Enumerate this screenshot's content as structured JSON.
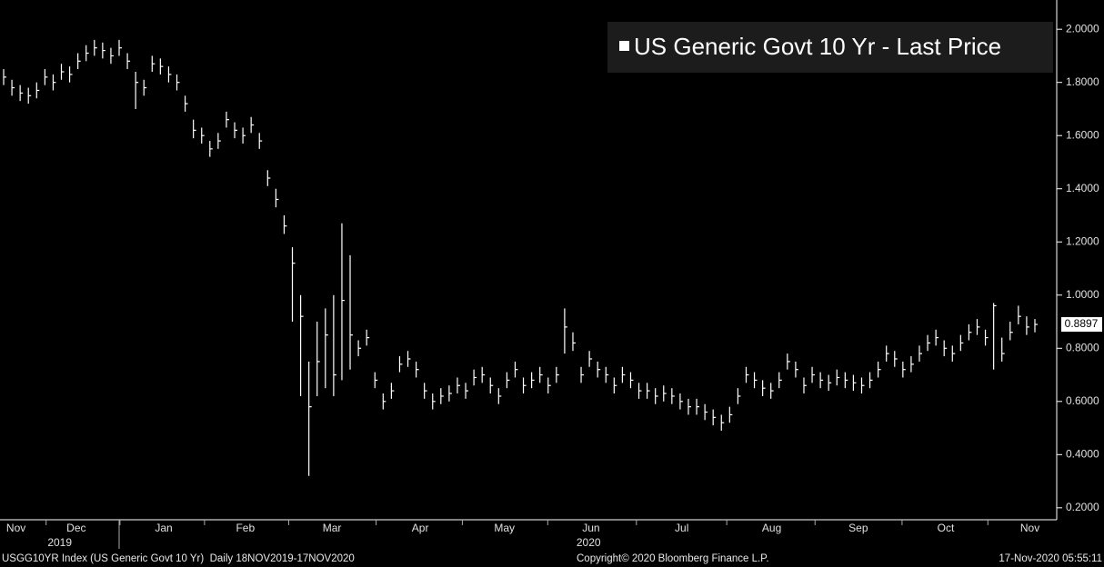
{
  "chart_data": {
    "type": "hlc",
    "series": [
      {
        "name": "US Generic Govt 10 Yr - Last Price",
        "color": "#ffffff",
        "high": [
          1.85,
          1.81,
          1.79,
          1.78,
          1.8,
          1.85,
          1.83,
          1.87,
          1.86,
          1.91,
          1.94,
          1.96,
          1.95,
          1.93,
          1.96,
          1.91,
          1.84,
          1.81,
          1.9,
          1.89,
          1.86,
          1.83,
          1.75,
          1.66,
          1.63,
          1.58,
          1.61,
          1.69,
          1.65,
          1.63,
          1.67,
          1.61,
          1.47,
          1.4,
          1.3,
          1.18,
          1.0,
          0.75,
          0.9,
          0.95,
          1.0,
          1.27,
          1.15,
          0.83,
          0.87,
          0.71,
          0.63,
          0.67,
          0.77,
          0.79,
          0.75,
          0.67,
          0.63,
          0.65,
          0.66,
          0.69,
          0.67,
          0.72,
          0.73,
          0.69,
          0.65,
          0.71,
          0.75,
          0.69,
          0.71,
          0.73,
          0.69,
          0.73,
          0.95,
          0.86,
          0.73,
          0.79,
          0.75,
          0.73,
          0.69,
          0.73,
          0.71,
          0.67,
          0.67,
          0.65,
          0.66,
          0.65,
          0.63,
          0.61,
          0.61,
          0.59,
          0.57,
          0.55,
          0.58,
          0.65,
          0.73,
          0.71,
          0.68,
          0.67,
          0.71,
          0.78,
          0.75,
          0.69,
          0.73,
          0.71,
          0.7,
          0.72,
          0.71,
          0.7,
          0.69,
          0.71,
          0.75,
          0.81,
          0.79,
          0.75,
          0.77,
          0.81,
          0.85,
          0.87,
          0.83,
          0.81,
          0.85,
          0.89,
          0.91,
          0.87,
          0.97,
          0.84,
          0.9,
          0.96,
          0.92,
          0.91
        ],
        "low": [
          1.79,
          1.75,
          1.73,
          1.72,
          1.74,
          1.79,
          1.77,
          1.81,
          1.8,
          1.85,
          1.88,
          1.9,
          1.89,
          1.87,
          1.9,
          1.85,
          1.7,
          1.75,
          1.84,
          1.83,
          1.8,
          1.77,
          1.69,
          1.59,
          1.57,
          1.52,
          1.55,
          1.63,
          1.59,
          1.57,
          1.61,
          1.55,
          1.41,
          1.33,
          1.23,
          0.9,
          0.62,
          0.32,
          0.62,
          0.65,
          0.62,
          0.68,
          0.72,
          0.77,
          0.81,
          0.65,
          0.57,
          0.61,
          0.71,
          0.73,
          0.69,
          0.61,
          0.57,
          0.59,
          0.6,
          0.63,
          0.61,
          0.66,
          0.67,
          0.63,
          0.59,
          0.65,
          0.69,
          0.63,
          0.65,
          0.67,
          0.63,
          0.67,
          0.78,
          0.79,
          0.67,
          0.73,
          0.69,
          0.67,
          0.63,
          0.67,
          0.65,
          0.61,
          0.61,
          0.59,
          0.6,
          0.59,
          0.57,
          0.55,
          0.55,
          0.53,
          0.51,
          0.49,
          0.52,
          0.59,
          0.67,
          0.65,
          0.62,
          0.61,
          0.65,
          0.72,
          0.69,
          0.63,
          0.67,
          0.65,
          0.64,
          0.66,
          0.65,
          0.64,
          0.63,
          0.65,
          0.69,
          0.75,
          0.73,
          0.69,
          0.71,
          0.75,
          0.79,
          0.81,
          0.77,
          0.75,
          0.79,
          0.83,
          0.85,
          0.81,
          0.72,
          0.75,
          0.83,
          0.89,
          0.85,
          0.86
        ],
        "close": [
          1.82,
          1.78,
          1.76,
          1.75,
          1.77,
          1.82,
          1.8,
          1.84,
          1.83,
          1.88,
          1.91,
          1.93,
          1.92,
          1.9,
          1.93,
          1.88,
          1.8,
          1.78,
          1.87,
          1.86,
          1.83,
          1.8,
          1.72,
          1.62,
          1.6,
          1.55,
          1.58,
          1.66,
          1.62,
          1.6,
          1.64,
          1.58,
          1.44,
          1.36,
          1.26,
          1.12,
          0.92,
          0.58,
          0.75,
          0.85,
          0.7,
          0.98,
          0.85,
          0.8,
          0.84,
          0.68,
          0.6,
          0.64,
          0.74,
          0.76,
          0.72,
          0.64,
          0.6,
          0.62,
          0.63,
          0.66,
          0.64,
          0.69,
          0.7,
          0.66,
          0.62,
          0.68,
          0.72,
          0.66,
          0.68,
          0.7,
          0.66,
          0.7,
          0.88,
          0.82,
          0.7,
          0.76,
          0.72,
          0.7,
          0.66,
          0.7,
          0.68,
          0.64,
          0.64,
          0.62,
          0.63,
          0.62,
          0.6,
          0.58,
          0.58,
          0.56,
          0.54,
          0.52,
          0.55,
          0.62,
          0.7,
          0.68,
          0.65,
          0.64,
          0.68,
          0.75,
          0.72,
          0.66,
          0.7,
          0.68,
          0.67,
          0.69,
          0.68,
          0.67,
          0.66,
          0.68,
          0.72,
          0.78,
          0.76,
          0.72,
          0.74,
          0.78,
          0.82,
          0.84,
          0.8,
          0.78,
          0.82,
          0.86,
          0.88,
          0.84,
          0.96,
          0.78,
          0.86,
          0.92,
          0.88,
          0.8897
        ]
      }
    ],
    "xlim": [
      0,
      125
    ],
    "xticks": [
      {
        "value": 1.5,
        "label": "Nov"
      },
      {
        "value": 8.8,
        "label": "Dec"
      },
      {
        "value": 19.4,
        "label": "Jan"
      },
      {
        "value": 29.3,
        "label": "Feb"
      },
      {
        "value": 39.8,
        "label": "Mar"
      },
      {
        "value": 50.5,
        "label": "Apr"
      },
      {
        "value": 60.7,
        "label": "May"
      },
      {
        "value": 71.2,
        "label": "Jun"
      },
      {
        "value": 82.2,
        "label": "Jul"
      },
      {
        "value": 93.1,
        "label": "Aug"
      },
      {
        "value": 103.6,
        "label": "Sep"
      },
      {
        "value": 114.2,
        "label": "Oct"
      },
      {
        "value": 124.4,
        "label": "Nov"
      }
    ],
    "year_ticks": [
      {
        "value": 6.8,
        "label": "2019"
      },
      {
        "value": 70.9,
        "label": "2020"
      }
    ],
    "ylim": [
      0.155,
      2.11
    ],
    "yticks": [
      {
        "value": 0.2,
        "label": "0.2000"
      },
      {
        "value": 0.4,
        "label": "0.4000"
      },
      {
        "value": 0.6,
        "label": "0.6000"
      },
      {
        "value": 0.8,
        "label": "0.8000"
      },
      {
        "value": 1.0,
        "label": "1.0000"
      },
      {
        "value": 1.2,
        "label": "1.2000"
      },
      {
        "value": 1.4,
        "label": "1.4000"
      },
      {
        "value": 1.6,
        "label": "1.6000"
      },
      {
        "value": 1.8,
        "label": "1.8000"
      },
      {
        "value": 2.0,
        "label": "2.0000"
      }
    ],
    "legend": "top-right"
  },
  "footer": {
    "left": "USGG10YR Index (US Generic Govt 10 Yr)  Daily 18NOV2019-17NOV2020",
    "center": "Copyright© 2020 Bloomberg Finance L.P.",
    "right": "17-Nov-2020 05:55:11"
  }
}
